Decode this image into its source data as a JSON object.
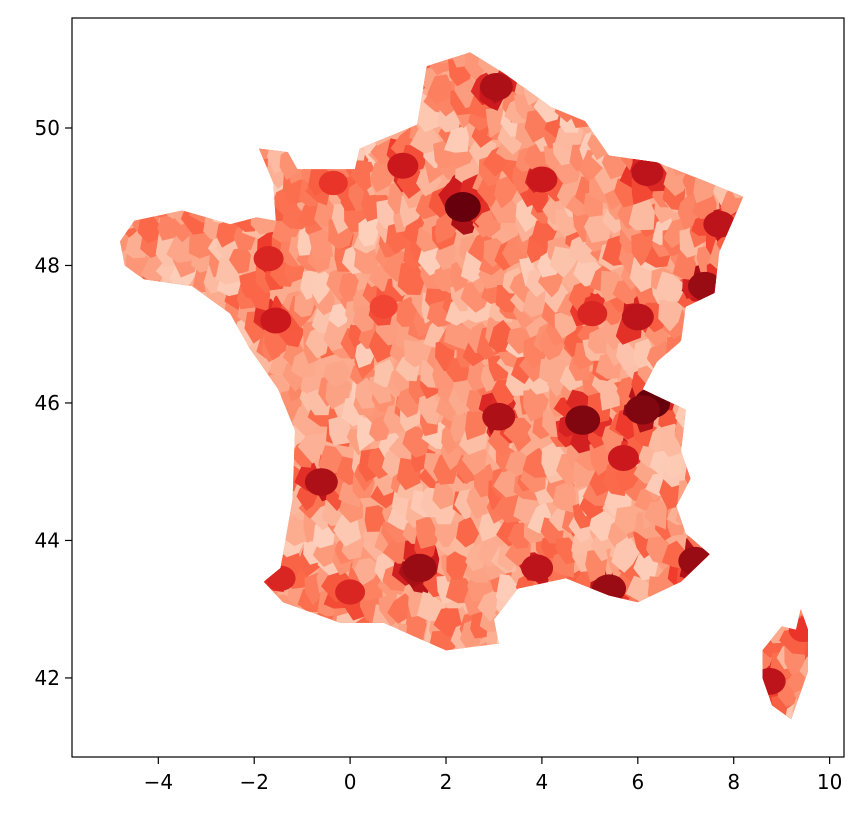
{
  "chart_data": {
    "type": "heatmap",
    "title": "",
    "xlabel": "",
    "ylabel": "",
    "xlim": [
      -5.8,
      10.3
    ],
    "ylim": [
      40.85,
      51.6
    ],
    "x_ticks": [
      -4,
      -2,
      0,
      2,
      4,
      6,
      8,
      10
    ],
    "x_tick_labels": [
      "−4",
      "−2",
      "0",
      "2",
      "4",
      "6",
      "8",
      "10"
    ],
    "y_ticks": [
      42,
      44,
      46,
      48,
      50
    ],
    "y_tick_labels": [
      "42",
      "44",
      "46",
      "48",
      "50"
    ],
    "colormap": "Reds",
    "color_scale": [
      "#fff5f0",
      "#fee0d2",
      "#fcbba1",
      "#fc9272",
      "#fb6a4a",
      "#ef3b2c",
      "#cb181d",
      "#a50f15",
      "#67000d"
    ],
    "legend": "none",
    "grid": false,
    "regions": [
      {
        "name": "mainland-france",
        "intensity": 0.3,
        "outline": [
          [
            -4.8,
            48.35
          ],
          [
            -4.5,
            48.65
          ],
          [
            -3.5,
            48.8
          ],
          [
            -2.5,
            48.6
          ],
          [
            -1.95,
            48.7
          ],
          [
            -1.55,
            48.65
          ],
          [
            -1.6,
            49.2
          ],
          [
            -1.9,
            49.7
          ],
          [
            -1.3,
            49.65
          ],
          [
            -1.1,
            49.4
          ],
          [
            0.1,
            49.4
          ],
          [
            0.2,
            49.7
          ],
          [
            1.4,
            50.05
          ],
          [
            1.6,
            50.9
          ],
          [
            2.5,
            51.1
          ],
          [
            3.2,
            50.8
          ],
          [
            4.2,
            50.3
          ],
          [
            4.9,
            50.1
          ],
          [
            5.4,
            49.6
          ],
          [
            6.4,
            49.5
          ],
          [
            7.5,
            49.2
          ],
          [
            8.2,
            49.0
          ],
          [
            7.7,
            48.2
          ],
          [
            7.6,
            47.6
          ],
          [
            7.0,
            47.4
          ],
          [
            6.9,
            46.9
          ],
          [
            6.4,
            46.6
          ],
          [
            6.1,
            46.2
          ],
          [
            7.0,
            45.9
          ],
          [
            6.9,
            45.3
          ],
          [
            7.1,
            44.9
          ],
          [
            6.8,
            44.5
          ],
          [
            7.0,
            44.1
          ],
          [
            7.5,
            43.8
          ],
          [
            6.9,
            43.4
          ],
          [
            6.0,
            43.1
          ],
          [
            5.4,
            43.2
          ],
          [
            4.5,
            43.45
          ],
          [
            3.5,
            43.3
          ],
          [
            3.0,
            42.85
          ],
          [
            3.1,
            42.5
          ],
          [
            2.0,
            42.4
          ],
          [
            0.7,
            42.8
          ],
          [
            -0.2,
            42.8
          ],
          [
            -1.4,
            43.1
          ],
          [
            -1.8,
            43.4
          ],
          [
            -1.45,
            43.6
          ],
          [
            -1.2,
            44.6
          ],
          [
            -1.15,
            45.6
          ],
          [
            -1.5,
            46.2
          ],
          [
            -2.1,
            46.8
          ],
          [
            -2.5,
            47.3
          ],
          [
            -3.3,
            47.7
          ],
          [
            -4.3,
            47.8
          ],
          [
            -4.7,
            48.0
          ]
        ]
      },
      {
        "name": "corsica",
        "intensity": 0.55,
        "outline": [
          [
            9.4,
            43.0
          ],
          [
            9.55,
            42.7
          ],
          [
            9.55,
            42.1
          ],
          [
            9.3,
            41.6
          ],
          [
            9.2,
            41.4
          ],
          [
            8.8,
            41.6
          ],
          [
            8.6,
            42.0
          ],
          [
            8.6,
            42.4
          ],
          [
            9.0,
            42.75
          ],
          [
            9.3,
            42.7
          ]
        ]
      }
    ],
    "hotspots": [
      {
        "name": "paris",
        "lon": 2.35,
        "lat": 48.85,
        "intensity": 1.0
      },
      {
        "name": "lyon",
        "lon": 4.85,
        "lat": 45.75,
        "intensity": 0.95
      },
      {
        "name": "geneva-border",
        "lon": 6.3,
        "lat": 46.0,
        "intensity": 1.0
      },
      {
        "name": "marseille",
        "lon": 5.4,
        "lat": 43.3,
        "intensity": 0.9
      },
      {
        "name": "nice",
        "lon": 7.2,
        "lat": 43.7,
        "intensity": 0.9
      },
      {
        "name": "toulouse",
        "lon": 1.45,
        "lat": 43.6,
        "intensity": 0.9
      },
      {
        "name": "lille",
        "lon": 3.05,
        "lat": 50.6,
        "intensity": 0.85
      },
      {
        "name": "strasbourg",
        "lon": 7.7,
        "lat": 48.6,
        "intensity": 0.8
      },
      {
        "name": "bordeaux",
        "lon": -0.6,
        "lat": 44.85,
        "intensity": 0.85
      },
      {
        "name": "clermont",
        "lon": 3.1,
        "lat": 45.8,
        "intensity": 0.85
      },
      {
        "name": "basel-mulhouse",
        "lon": 7.4,
        "lat": 47.7,
        "intensity": 0.9
      },
      {
        "name": "montpellier",
        "lon": 3.9,
        "lat": 43.6,
        "intensity": 0.8
      },
      {
        "name": "metz-lux",
        "lon": 6.2,
        "lat": 49.35,
        "intensity": 0.8
      },
      {
        "name": "reims",
        "lon": 4.0,
        "lat": 49.25,
        "intensity": 0.75
      },
      {
        "name": "rouen",
        "lon": 1.1,
        "lat": 49.45,
        "intensity": 0.75
      },
      {
        "name": "nantes",
        "lon": -1.55,
        "lat": 47.2,
        "intensity": 0.75
      },
      {
        "name": "rennes",
        "lon": -1.7,
        "lat": 48.1,
        "intensity": 0.7
      },
      {
        "name": "dijon",
        "lon": 5.05,
        "lat": 47.3,
        "intensity": 0.7
      },
      {
        "name": "grenoble",
        "lon": 5.7,
        "lat": 45.2,
        "intensity": 0.75
      },
      {
        "name": "bayonne",
        "lon": -1.45,
        "lat": 43.45,
        "intensity": 0.7
      },
      {
        "name": "tarbes",
        "lon": 0.0,
        "lat": 43.25,
        "intensity": 0.7
      },
      {
        "name": "caen",
        "lon": -0.35,
        "lat": 49.2,
        "intensity": 0.65
      },
      {
        "name": "tours",
        "lon": 0.7,
        "lat": 47.4,
        "intensity": 0.6
      },
      {
        "name": "ajaccio",
        "lon": 8.75,
        "lat": 41.95,
        "intensity": 0.8
      },
      {
        "name": "bastia",
        "lon": 9.45,
        "lat": 42.7,
        "intensity": 0.65
      },
      {
        "name": "annecy",
        "lon": 6.1,
        "lat": 45.9,
        "intensity": 0.95
      },
      {
        "name": "besancon",
        "lon": 6.0,
        "lat": 47.25,
        "intensity": 0.8
      }
    ]
  }
}
